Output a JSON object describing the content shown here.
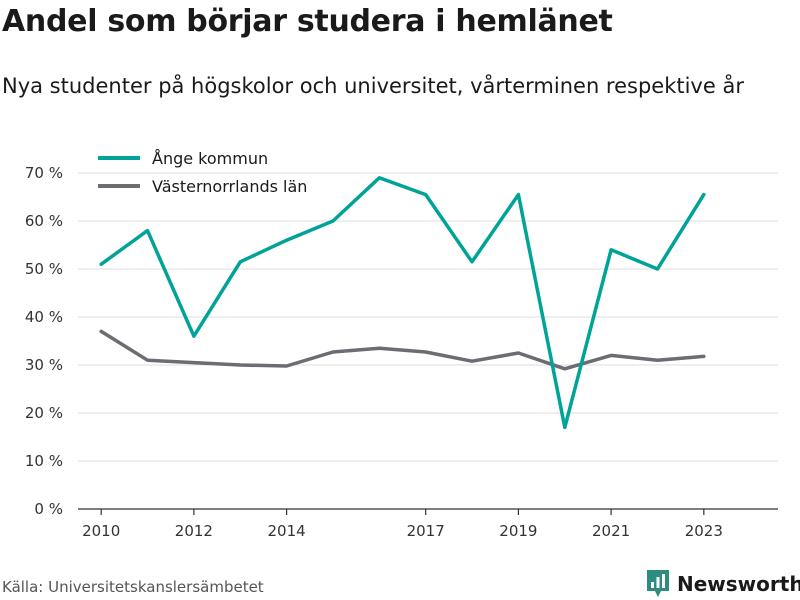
{
  "title": "Andel som börjar studera i hemlänet",
  "subtitle": "Nya studenter på högskolor och universitet, vårterminen respektive år",
  "source": "Källa: Universitetskanslersämbetet",
  "logo_text": "Newsworthy",
  "colors": {
    "brand": "#2d8c7e",
    "series_1": "#00a397",
    "series_2": "#6b6d73",
    "grid": "#dddddd",
    "axis": "#333333"
  },
  "chart_data": {
    "type": "line",
    "title": "Andel som börjar studera i hemlänet",
    "xlabel": "",
    "ylabel": "",
    "xlim": [
      2009.5,
      2024.6
    ],
    "ylim": [
      0,
      70
    ],
    "yticks": [
      0,
      10,
      20,
      30,
      40,
      50,
      60,
      70
    ],
    "ytick_labels": [
      "0 %",
      "10 %",
      "20 %",
      "30 %",
      "40 %",
      "50 %",
      "60 %",
      "70 %"
    ],
    "xticks": [
      2010,
      2012,
      2014,
      2017,
      2019,
      2021,
      2023
    ],
    "xtick_labels": [
      "2010",
      "2012",
      "2014",
      "2017",
      "2019",
      "2021",
      "2023"
    ],
    "grid": true,
    "legend_position": "top-left",
    "x": [
      2010,
      2011,
      2012,
      2013,
      2014,
      2015,
      2016,
      2017,
      2018,
      2019,
      2020,
      2021,
      2022,
      2023
    ],
    "series": [
      {
        "name": "Ånge kommun",
        "color": "#00a397",
        "values": [
          51,
          58,
          36,
          51.5,
          56,
          60,
          69,
          65.5,
          51.5,
          65.5,
          17,
          54,
          50,
          65.5
        ]
      },
      {
        "name": "Västernorrlands län",
        "color": "#6b6d73",
        "values": [
          37,
          31,
          30.5,
          30,
          29.8,
          32.7,
          33.5,
          32.7,
          30.8,
          32.5,
          29.2,
          32,
          31,
          31.8
        ]
      }
    ]
  }
}
